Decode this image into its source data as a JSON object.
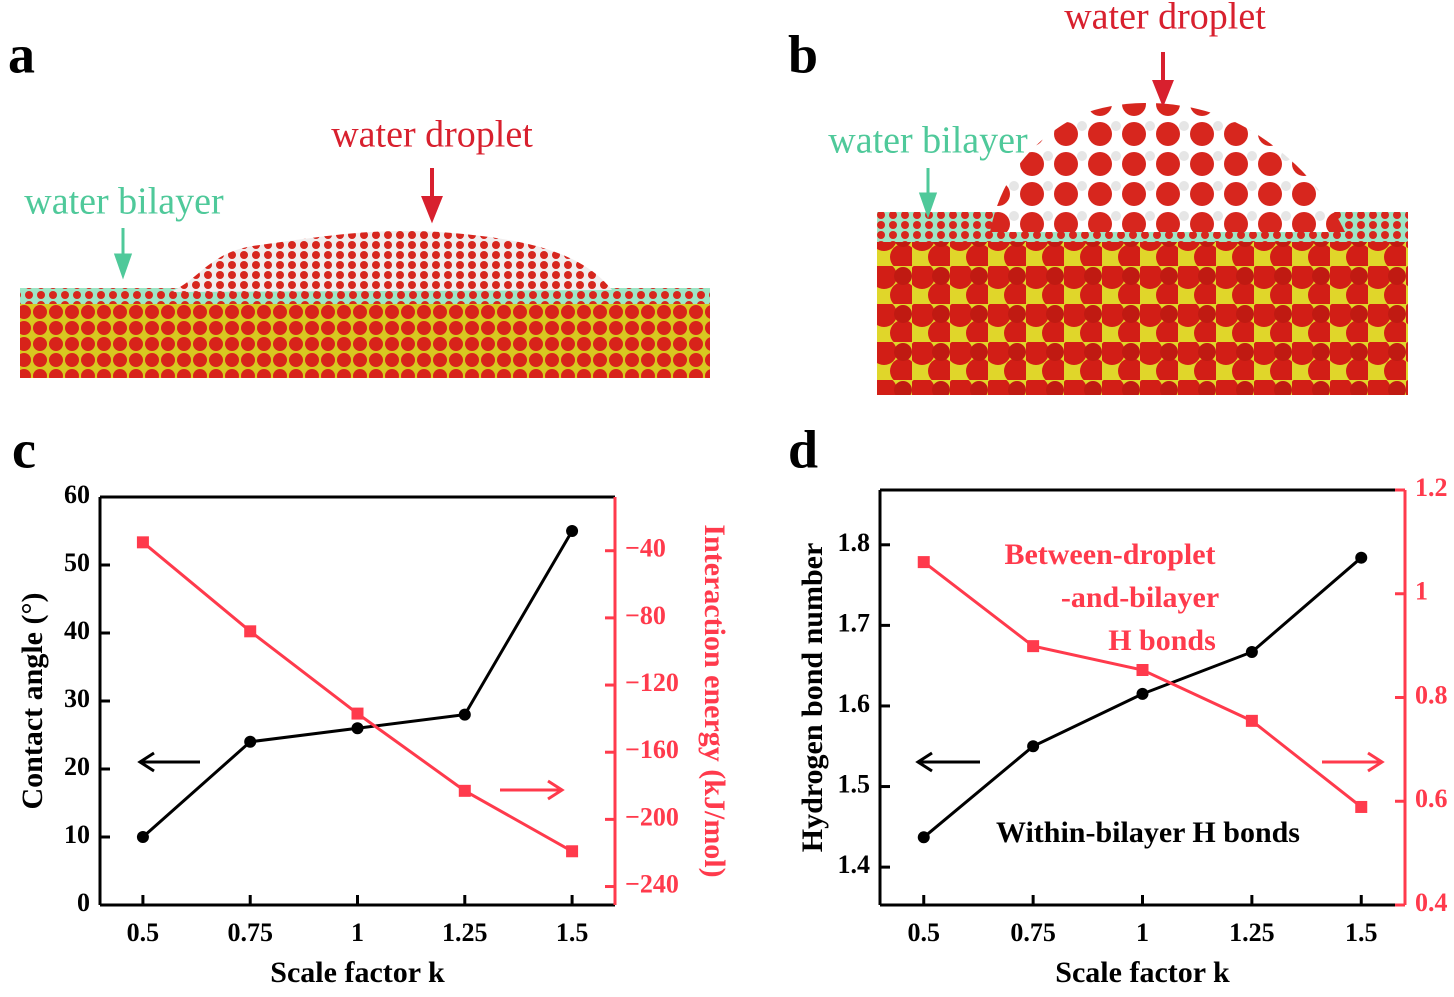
{
  "panels": [
    {
      "label": "a",
      "droplet_label": "water droplet",
      "bilayer_label": "water bilayer"
    },
    {
      "label": "b",
      "droplet_label": "water droplet",
      "bilayer_label": "water bilayer"
    }
  ],
  "chart_data": [
    {
      "type": "line",
      "panel": "c",
      "x": [
        0.5,
        0.75,
        1,
        1.25,
        1.5
      ],
      "x_label": "Scale factor k",
      "y_label": "Contact angle (°)",
      "y2_label": "Interaction energy (kJ/mol)",
      "xlim": [
        0.4,
        1.6
      ],
      "xticks": [
        0.5,
        0.75,
        1,
        1.25,
        1.5
      ],
      "ylim": [
        0,
        60
      ],
      "yticks": [
        0,
        10,
        20,
        30,
        40,
        50,
        60
      ],
      "y2lim": [
        -251,
        -8
      ],
      "y2ticks": [
        {
          "value": -40,
          "label": "−40"
        },
        {
          "value": -80,
          "label": "−80"
        },
        {
          "value": -120,
          "label": "−120"
        },
        {
          "value": -160,
          "label": "−160"
        },
        {
          "value": -200,
          "label": "−200"
        },
        {
          "value": -240,
          "label": "−240"
        }
      ],
      "series": [
        {
          "color": "#000000",
          "marker": "circle",
          "values": [
            10,
            24,
            26,
            28,
            55
          ]
        },
        {
          "color": "#ff3a4c",
          "marker": "square",
          "axis": "y2",
          "values": [
            -35,
            -88,
            -137,
            -183,
            -219
          ]
        }
      ]
    },
    {
      "type": "line",
      "panel": "d",
      "x": [
        0.5,
        0.75,
        1,
        1.25,
        1.5
      ],
      "x_label": "Scale factor k",
      "y_label": "Hydrogen bond number",
      "xlim": [
        0.4,
        1.6
      ],
      "xticks": [
        0.5,
        0.75,
        1,
        1.25,
        1.5
      ],
      "ylim": [
        1.353,
        1.868
      ],
      "yticks": [
        1.4,
        1.5,
        1.6,
        1.7,
        1.8
      ],
      "y2lim": [
        0.4,
        1.2
      ],
      "y2ticks": [
        0.4,
        0.6,
        0.8,
        1,
        1.2
      ],
      "annotations": [
        "Between-droplet",
        "-and-bilayer",
        "H bonds",
        "Within-bilayer H bonds"
      ],
      "series": [
        {
          "color": "#000000",
          "marker": "circle",
          "values": [
            1.437,
            1.55,
            1.615,
            1.667,
            1.784
          ]
        },
        {
          "color": "#ff3a4c",
          "marker": "square",
          "axis": "y2",
          "values": [
            1.061,
            0.899,
            0.853,
            0.755,
            0.589
          ]
        }
      ]
    }
  ]
}
